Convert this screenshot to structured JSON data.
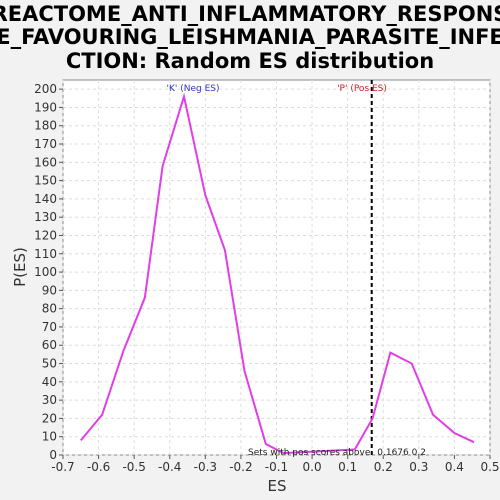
{
  "chart_data": {
    "type": "line",
    "title_lines": [
      "REACTOME_ANTI_INFLAMMATORY_RESPONS",
      "E_FAVOURING_LEISHMANIA_PARASITE_INFE",
      "CTION: Random ES distribution"
    ],
    "xlabel": "ES",
    "ylabel": "P(ES)",
    "xlim": [
      -0.7,
      0.5
    ],
    "ylim": [
      0,
      205
    ],
    "xticks": [
      -0.7,
      -0.6,
      -0.5,
      -0.4,
      -0.3,
      -0.2,
      -0.1,
      0.0,
      0.1,
      0.2,
      0.3,
      0.4,
      0.5
    ],
    "xtick_labels": [
      "-0.7",
      "-0.6",
      "-0.5",
      "-0.4",
      "-0.3",
      "-0.2",
      "-0.1",
      "0.0",
      "0.1",
      "0.2",
      "0.3",
      "0.4",
      "0.5"
    ],
    "yticks": [
      0,
      10,
      20,
      30,
      40,
      50,
      60,
      70,
      80,
      90,
      100,
      110,
      120,
      130,
      140,
      150,
      160,
      170,
      180,
      190,
      200
    ],
    "grid": true,
    "series": [
      {
        "color": "#e23ee8",
        "x": [
          -0.65,
          -0.59,
          -0.53,
          -0.47,
          -0.42,
          -0.36,
          -0.3,
          -0.245,
          -0.19,
          -0.13,
          -0.08,
          0.12,
          0.17,
          0.22,
          0.28,
          0.34,
          0.4,
          0.455
        ],
        "y": [
          8,
          22,
          57,
          86,
          158,
          196,
          142,
          112,
          46,
          6,
          1,
          3,
          20,
          56,
          50,
          22,
          12,
          7
        ]
      }
    ],
    "marker_line": {
      "x": 0.1676,
      "style": "dashed",
      "color": "#000000"
    },
    "annotations": {
      "neg_label": "'K' (Neg ES)",
      "neg_color": "#3333cc",
      "pos_label": "'P' (Pos ES)",
      "pos_color": "#cc2222",
      "note": "Sets with pos scores above",
      "note_value": "0.1676 0.2"
    }
  }
}
